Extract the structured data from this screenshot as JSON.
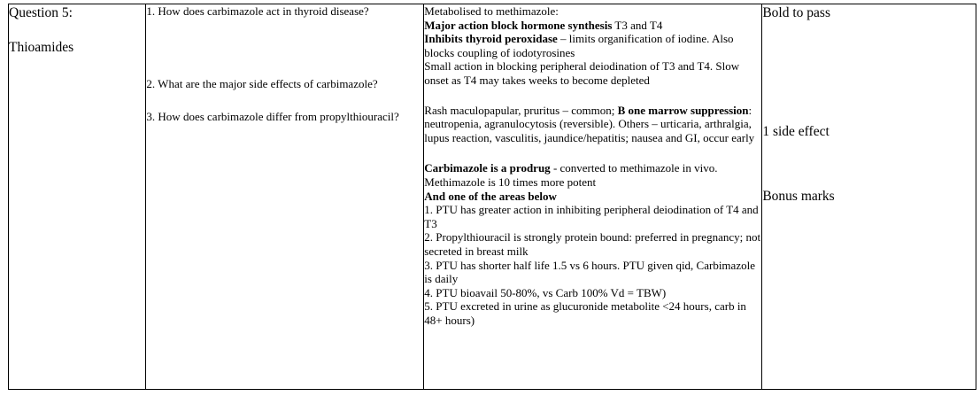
{
  "topic": {
    "question_number": "Question 5:",
    "name": "Thioamides"
  },
  "questions": [
    "1. How does carbimazole act in thyroid disease?",
    "2. What are the major side effects of carbimazole?",
    "3. How does carbimazole differ from propylthiouracil?"
  ],
  "answers": {
    "a1": {
      "intro": "Metabolised to methimazole:",
      "bold1": "Major action block hormone synthesis",
      "text1": " T3 and T4",
      "bold2": "Inhibits thyroid peroxidase",
      "text2": " – limits organification of iodine.  Also blocks coupling of iodotyrosines",
      "text3": "Small action in blocking peripheral deiodination of T3 and T4.  Slow onset as T4 may takes weeks to become depleted"
    },
    "a2": {
      "text1": "Rash maculopapular, pruritus – common;  ",
      "bold1": "B one marrow suppression",
      "text2": ": neutropenia, agranulocytosis (reversible). Others – urticaria, arthralgia, lupus reaction, vasculitis, jaundice/hepatitis; nausea and GI, occur early"
    },
    "a3": {
      "bold1": "Carbimazole is a prodrug",
      "text1": " - converted to methimazole in vivo.  Methimazole is 10 times more potent",
      "bold2": "And one of the areas below",
      "items": [
        "1. PTU has greater action in inhibiting peripheral deiodination of T4 and T3",
        "2. Propylthiouracil is strongly protein bound: preferred in pregnancy; not secreted in breast milk",
        "3. PTU has shorter half life 1.5 vs 6 hours.  PTU given qid, Carbimazole is daily",
        "4. PTU bioavail 50-80%, vs Carb 100%  Vd = TBW)",
        "5. PTU excreted in urine as glucuronide metabolite <24 hours, carb in 48+ hours)"
      ]
    }
  },
  "marking": [
    "Bold to pass",
    "1 side effect",
    "Bonus marks"
  ]
}
